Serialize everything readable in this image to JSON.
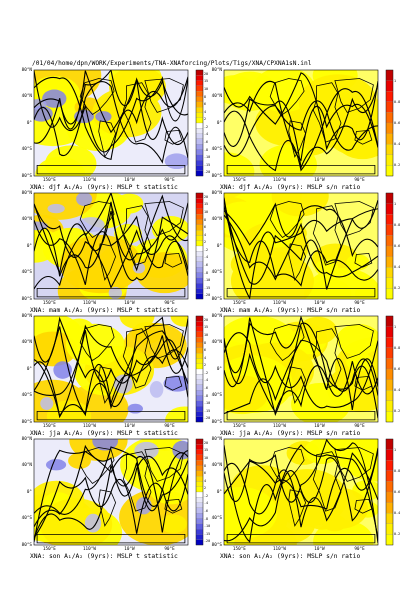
{
  "header": "/01/04/home/dpn/WORK/Experiments/TNA-XNAforcing/Plots/Tigs/XNA/CPXNA1sN.inl",
  "colors": {
    "land": "#ffff00",
    "warm": [
      "#ffff00",
      "#fff000",
      "#ffd800",
      "#ffb000",
      "#ff8c00",
      "#ff6a00",
      "#ff3c00",
      "#ff1a00",
      "#e80000",
      "#c00000"
    ],
    "cool": [
      "#ffffff",
      "#e8e8f8",
      "#d4d4f4",
      "#bcbcf0",
      "#a0a0ec",
      "#8484e8",
      "#6060e0",
      "#3c3cd8",
      "#2020d0",
      "#0000c0"
    ]
  },
  "lat_labels": [
    "80°N",
    "40°N",
    "0°",
    "40°S",
    "80°S"
  ],
  "lon_labels": [
    "150°E",
    "110°W",
    "10°W",
    "90°E"
  ],
  "tstat_ticks": [
    "20",
    "15",
    "10",
    "8",
    "6",
    "4",
    "2",
    "-2",
    "-4",
    "-6",
    "-8",
    "-10",
    "-15",
    "-20"
  ],
  "sn_ticks": [
    "1",
    "0.8",
    "0.6",
    "0.4",
    "0.2"
  ],
  "chart_data": [
    {
      "type": "heatmap",
      "title": "XNA: djf A₁/A₂ (9yrs): MSLP t statistic",
      "season": "djf",
      "quantity": "t statistic"
    },
    {
      "type": "heatmap",
      "title": "XNA: djf A₁/A₂ (9yrs): MSLP s/n ratio",
      "season": "djf",
      "quantity": "s/n ratio"
    },
    {
      "type": "heatmap",
      "title": "XNA: mam A₁/A₂ (9yrs): MSLP t statistic",
      "season": "mam",
      "quantity": "t statistic"
    },
    {
      "type": "heatmap",
      "title": "XNA: mam A₁/A₂ (9yrs): MSLP s/n ratio",
      "season": "mam",
      "quantity": "s/n ratio"
    },
    {
      "type": "heatmap",
      "title": "XNA: jja A₁/A₂ (9yrs): MSLP t statistic",
      "season": "jja",
      "quantity": "t statistic"
    },
    {
      "type": "heatmap",
      "title": "XNA: jja A₁/A₂ (9yrs): MSLP s/n ratio",
      "season": "jja",
      "quantity": "s/n ratio"
    },
    {
      "type": "heatmap",
      "title": "XNA: son A₁/A₂ (9yrs): MSLP t statistic",
      "season": "son",
      "quantity": "t statistic"
    },
    {
      "type": "heatmap",
      "title": "XNA: son A₁/A₂ (9yrs): MSLP s/n ratio",
      "season": "son",
      "quantity": "s/n ratio"
    }
  ]
}
